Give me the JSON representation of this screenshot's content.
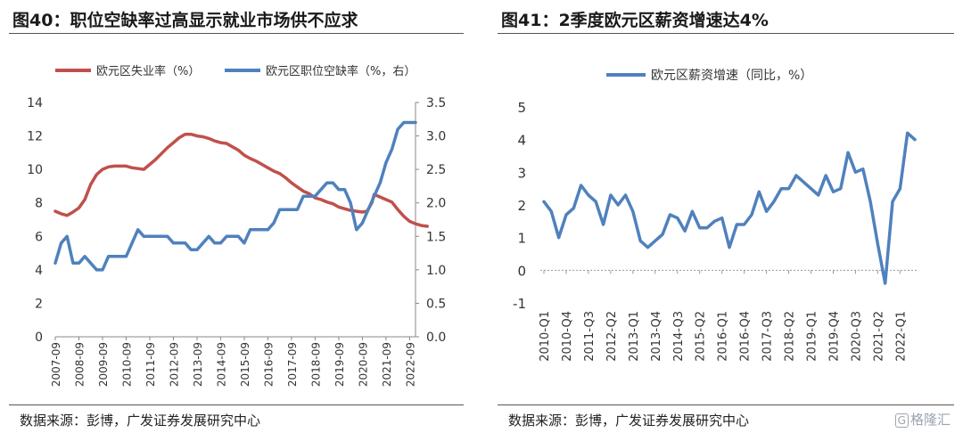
{
  "left_panel": {
    "title": "图40：职位空缺率过高显示就业市场供不应求",
    "source": "数据来源：彭博，广发证券发展研究中心"
  },
  "right_panel": {
    "title": "图41：2季度欧元区薪资增速达4%",
    "source": "数据来源：彭博，广发证券发展研究中心"
  },
  "watermark": {
    "logo": "G",
    "text": "格隆汇"
  },
  "chart_data": [
    {
      "type": "line",
      "x_labels": [
        "2007-09",
        "2008-09",
        "2009-09",
        "2010-09",
        "2011-09",
        "2012-09",
        "2013-09",
        "2014-09",
        "2015-09",
        "2016-09",
        "2017-09",
        "2018-09",
        "2019-09",
        "2020-09",
        "2021-09",
        "2022-09"
      ],
      "y_left": {
        "ylim": [
          0,
          14
        ],
        "ticks": [
          "0",
          "2",
          "4",
          "6",
          "8",
          "10",
          "12",
          "14"
        ]
      },
      "y_right": {
        "ylim": [
          0,
          3.5
        ],
        "ticks": [
          "0.0",
          "0.5",
          "1.0",
          "1.5",
          "2.0",
          "2.5",
          "3.0",
          "3.5"
        ]
      },
      "series": [
        {
          "name": "欧元区失业率（%）",
          "color": "#c0504d",
          "axis": "left",
          "points": [
            [
              0,
              7.5
            ],
            [
              0.25,
              7.35
            ],
            [
              0.5,
              7.25
            ],
            [
              0.75,
              7.45
            ],
            [
              1.0,
              7.7
            ],
            [
              1.25,
              8.2
            ],
            [
              1.5,
              9.1
            ],
            [
              1.75,
              9.7
            ],
            [
              2.0,
              10.0
            ],
            [
              2.25,
              10.15
            ],
            [
              2.5,
              10.2
            ],
            [
              3.0,
              10.2
            ],
            [
              3.25,
              10.1
            ],
            [
              3.5,
              10.05
            ],
            [
              3.75,
              10.0
            ],
            [
              4.0,
              10.3
            ],
            [
              4.25,
              10.6
            ],
            [
              4.5,
              10.95
            ],
            [
              4.75,
              11.3
            ],
            [
              5.0,
              11.6
            ],
            [
              5.25,
              11.9
            ],
            [
              5.5,
              12.1
            ],
            [
              5.75,
              12.1
            ],
            [
              6.0,
              12.0
            ],
            [
              6.25,
              11.95
            ],
            [
              6.5,
              11.85
            ],
            [
              6.75,
              11.7
            ],
            [
              7.0,
              11.6
            ],
            [
              7.25,
              11.55
            ],
            [
              7.5,
              11.35
            ],
            [
              7.75,
              11.15
            ],
            [
              8.0,
              10.85
            ],
            [
              8.25,
              10.65
            ],
            [
              8.5,
              10.5
            ],
            [
              8.75,
              10.3
            ],
            [
              9.0,
              10.1
            ],
            [
              9.25,
              9.9
            ],
            [
              9.5,
              9.75
            ],
            [
              9.75,
              9.5
            ],
            [
              10.0,
              9.2
            ],
            [
              10.25,
              8.95
            ],
            [
              10.5,
              8.7
            ],
            [
              10.75,
              8.55
            ],
            [
              11.0,
              8.3
            ],
            [
              11.25,
              8.2
            ],
            [
              11.5,
              8.05
            ],
            [
              11.75,
              7.95
            ],
            [
              12.0,
              7.75
            ],
            [
              12.25,
              7.65
            ],
            [
              12.5,
              7.55
            ],
            [
              12.75,
              7.5
            ],
            [
              13.0,
              7.45
            ],
            [
              13.2,
              7.5
            ],
            [
              13.4,
              8.0
            ],
            [
              13.5,
              8.5
            ],
            [
              13.75,
              8.35
            ],
            [
              14.0,
              8.2
            ],
            [
              14.25,
              8.05
            ],
            [
              14.5,
              7.6
            ],
            [
              14.75,
              7.2
            ],
            [
              15.0,
              6.9
            ],
            [
              15.25,
              6.75
            ],
            [
              15.5,
              6.65
            ],
            [
              15.75,
              6.6
            ]
          ]
        },
        {
          "name": "欧元区职位空缺率（%，右）",
          "color": "#4f81bd",
          "axis": "right",
          "points": [
            [
              0,
              1.1
            ],
            [
              0.25,
              1.4
            ],
            [
              0.5,
              1.5
            ],
            [
              0.75,
              1.1
            ],
            [
              1.0,
              1.1
            ],
            [
              1.25,
              1.2
            ],
            [
              1.5,
              1.1
            ],
            [
              1.75,
              1.0
            ],
            [
              2.0,
              1.0
            ],
            [
              2.25,
              1.2
            ],
            [
              2.5,
              1.2
            ],
            [
              3.0,
              1.2
            ],
            [
              3.25,
              1.4
            ],
            [
              3.5,
              1.6
            ],
            [
              3.75,
              1.5
            ],
            [
              4.0,
              1.5
            ],
            [
              4.5,
              1.5
            ],
            [
              4.75,
              1.5
            ],
            [
              5.0,
              1.4
            ],
            [
              5.25,
              1.4
            ],
            [
              5.5,
              1.4
            ],
            [
              5.75,
              1.3
            ],
            [
              6.0,
              1.3
            ],
            [
              6.25,
              1.4
            ],
            [
              6.5,
              1.5
            ],
            [
              6.75,
              1.4
            ],
            [
              7.0,
              1.4
            ],
            [
              7.25,
              1.5
            ],
            [
              7.5,
              1.5
            ],
            [
              7.75,
              1.5
            ],
            [
              8.0,
              1.4
            ],
            [
              8.25,
              1.6
            ],
            [
              8.5,
              1.6
            ],
            [
              8.75,
              1.6
            ],
            [
              9.0,
              1.6
            ],
            [
              9.25,
              1.7
            ],
            [
              9.5,
              1.9
            ],
            [
              9.75,
              1.9
            ],
            [
              10.0,
              1.9
            ],
            [
              10.25,
              1.9
            ],
            [
              10.5,
              2.1
            ],
            [
              10.75,
              2.1
            ],
            [
              11.0,
              2.1
            ],
            [
              11.25,
              2.2
            ],
            [
              11.5,
              2.3
            ],
            [
              11.75,
              2.3
            ],
            [
              12.0,
              2.2
            ],
            [
              12.25,
              2.2
            ],
            [
              12.5,
              2.0
            ],
            [
              12.75,
              1.6
            ],
            [
              13.0,
              1.7
            ],
            [
              13.25,
              1.9
            ],
            [
              13.5,
              2.1
            ],
            [
              13.75,
              2.3
            ],
            [
              14.0,
              2.6
            ],
            [
              14.25,
              2.8
            ],
            [
              14.5,
              3.1
            ],
            [
              14.75,
              3.2
            ],
            [
              15.0,
              3.2
            ],
            [
              15.25,
              3.2
            ]
          ]
        }
      ]
    },
    {
      "type": "line",
      "x_labels": [
        "2010-Q1",
        "2010-Q4",
        "2011-Q3",
        "2012-Q2",
        "2013-Q1",
        "2013-Q4",
        "2014-Q3",
        "2015-Q2",
        "2016-Q1",
        "2016-Q4",
        "2017-Q3",
        "2018-Q2",
        "2019-Q1",
        "2019-Q4",
        "2020-Q3",
        "2021-Q2",
        "2022-Q1"
      ],
      "y": {
        "ylim": [
          -1,
          5
        ],
        "ticks": [
          "-1",
          "0",
          "1",
          "2",
          "3",
          "4",
          "5"
        ]
      },
      "series": [
        {
          "name": "欧元区薪资增速（同比，%）",
          "color": "#4f81bd",
          "values": [
            2.1,
            1.8,
            1.0,
            1.7,
            1.9,
            2.6,
            2.3,
            2.1,
            1.4,
            2.3,
            2.0,
            2.3,
            1.8,
            0.9,
            0.7,
            0.9,
            1.1,
            1.7,
            1.6,
            1.2,
            1.8,
            1.3,
            1.3,
            1.5,
            1.6,
            0.7,
            1.4,
            1.4,
            1.7,
            2.4,
            1.8,
            2.1,
            2.5,
            2.5,
            2.9,
            2.7,
            2.5,
            2.3,
            2.9,
            2.4,
            2.5,
            3.6,
            3.0,
            3.1,
            2.1,
            0.8,
            -0.4,
            2.1,
            2.5,
            4.2,
            4.0
          ]
        }
      ]
    }
  ]
}
